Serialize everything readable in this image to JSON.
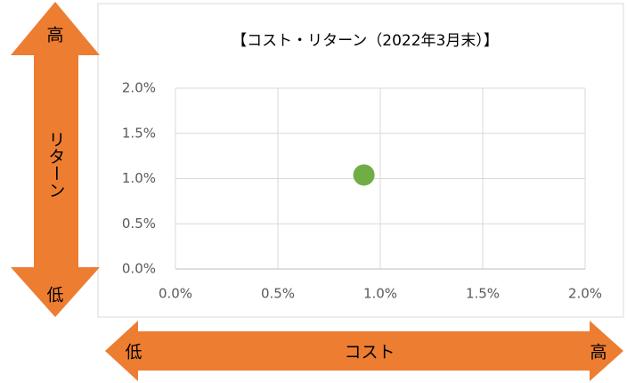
{
  "chart_data": {
    "type": "scatter",
    "title": "【コスト・リターン（2022年3月末）】",
    "series": [
      {
        "color": "#70ad47",
        "x": [
          0.92
        ],
        "values": [
          1.04
        ]
      }
    ],
    "xlim": [
      0,
      2
    ],
    "ylim": [
      0,
      2
    ],
    "xticks": [
      {
        "value": 0,
        "label": "0.0%"
      },
      {
        "value": 0.5,
        "label": "0.5%"
      },
      {
        "value": 1,
        "label": "1.0%"
      },
      {
        "value": 1.5,
        "label": "1.5%"
      },
      {
        "value": 2,
        "label": "2.0%"
      }
    ],
    "yticks": [
      {
        "value": 0,
        "label": "0.0%"
      },
      {
        "value": 0.5,
        "label": "0.5%"
      },
      {
        "value": 1,
        "label": "1.0%"
      },
      {
        "value": 1.5,
        "label": "1.5%"
      },
      {
        "value": 2,
        "label": "2.0%"
      }
    ],
    "grid": true,
    "y_arrow": {
      "high": "高",
      "label": "リターン",
      "low": "低"
    },
    "x_arrow": {
      "low": "低",
      "label": "コスト",
      "high": "高"
    }
  }
}
